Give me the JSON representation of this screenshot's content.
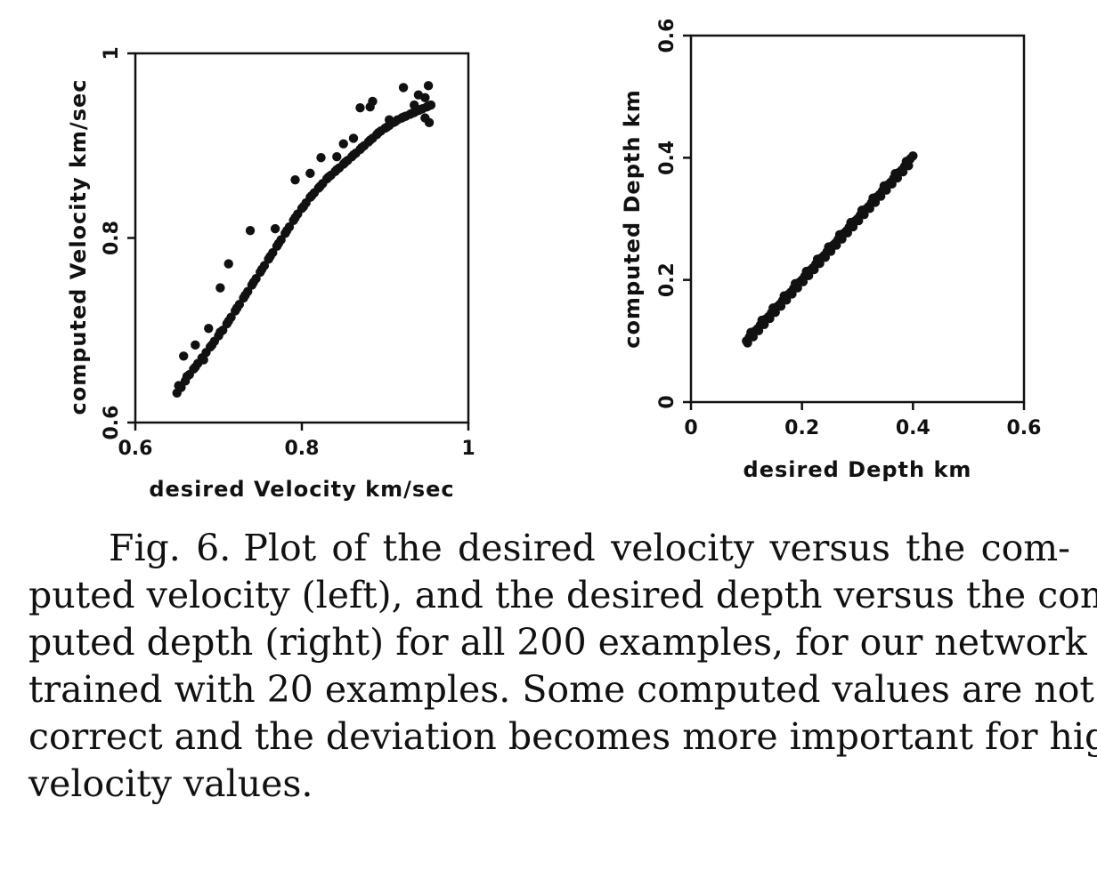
{
  "chart_data": [
    {
      "type": "scatter",
      "panel": "left",
      "xlabel": "desired Velocity km/sec",
      "ylabel": "computed Velocity km/sec",
      "xlim": [
        0.6,
        1.0
      ],
      "ylim": [
        0.6,
        1.0
      ],
      "xticks": [
        "0.6",
        "0.8",
        "1"
      ],
      "yticks": [
        "0.6",
        "0.8",
        "1"
      ],
      "grid": false,
      "series": [
        {
          "marker_color": "#111111",
          "points": [
            [
              0.65,
              0.632
            ],
            [
              0.655,
              0.638
            ],
            [
              0.66,
              0.645
            ],
            [
              0.665,
              0.652
            ],
            [
              0.67,
              0.658
            ],
            [
              0.675,
              0.664
            ],
            [
              0.68,
              0.67
            ],
            [
              0.685,
              0.676
            ],
            [
              0.69,
              0.682
            ],
            [
              0.695,
              0.688
            ],
            [
              0.7,
              0.694
            ],
            [
              0.705,
              0.7
            ],
            [
              0.71,
              0.707
            ],
            [
              0.715,
              0.714
            ],
            [
              0.72,
              0.721
            ],
            [
              0.725,
              0.728
            ],
            [
              0.73,
              0.735
            ],
            [
              0.735,
              0.742
            ],
            [
              0.74,
              0.749
            ],
            [
              0.745,
              0.756
            ],
            [
              0.75,
              0.763
            ],
            [
              0.755,
              0.77
            ],
            [
              0.76,
              0.777
            ],
            [
              0.765,
              0.784
            ],
            [
              0.77,
              0.791
            ],
            [
              0.775,
              0.798
            ],
            [
              0.78,
              0.805
            ],
            [
              0.785,
              0.812
            ],
            [
              0.79,
              0.819
            ],
            [
              0.795,
              0.826
            ],
            [
              0.8,
              0.832
            ],
            [
              0.805,
              0.838
            ],
            [
              0.81,
              0.844
            ],
            [
              0.815,
              0.849
            ],
            [
              0.82,
              0.854
            ],
            [
              0.825,
              0.859
            ],
            [
              0.83,
              0.864
            ],
            [
              0.835,
              0.868
            ],
            [
              0.84,
              0.872
            ],
            [
              0.845,
              0.876
            ],
            [
              0.85,
              0.88
            ],
            [
              0.855,
              0.884
            ],
            [
              0.86,
              0.888
            ],
            [
              0.865,
              0.892
            ],
            [
              0.87,
              0.896
            ],
            [
              0.875,
              0.9
            ],
            [
              0.88,
              0.904
            ],
            [
              0.885,
              0.908
            ],
            [
              0.89,
              0.912
            ],
            [
              0.895,
              0.916
            ],
            [
              0.9,
              0.919
            ],
            [
              0.905,
              0.922
            ],
            [
              0.91,
              0.925
            ],
            [
              0.915,
              0.928
            ],
            [
              0.92,
              0.93
            ],
            [
              0.925,
              0.932
            ],
            [
              0.93,
              0.934
            ],
            [
              0.935,
              0.936
            ],
            [
              0.94,
              0.938
            ],
            [
              0.945,
              0.94
            ],
            [
              0.95,
              0.942
            ],
            [
              0.955,
              0.944
            ],
            [
              0.652,
              0.64
            ],
            [
              0.662,
              0.65
            ],
            [
              0.672,
              0.66
            ],
            [
              0.682,
              0.668
            ],
            [
              0.692,
              0.684
            ],
            [
              0.702,
              0.698
            ],
            [
              0.712,
              0.71
            ],
            [
              0.722,
              0.724
            ],
            [
              0.732,
              0.738
            ],
            [
              0.742,
              0.752
            ],
            [
              0.752,
              0.766
            ],
            [
              0.762,
              0.78
            ],
            [
              0.772,
              0.794
            ],
            [
              0.782,
              0.808
            ],
            [
              0.792,
              0.822
            ],
            [
              0.802,
              0.834
            ],
            [
              0.812,
              0.846
            ],
            [
              0.822,
              0.856
            ],
            [
              0.832,
              0.866
            ],
            [
              0.842,
              0.874
            ],
            [
              0.852,
              0.882
            ],
            [
              0.862,
              0.89
            ],
            [
              0.872,
              0.898
            ],
            [
              0.882,
              0.906
            ],
            [
              0.892,
              0.914
            ],
            [
              0.902,
              0.92
            ],
            [
              0.912,
              0.926
            ],
            [
              0.922,
              0.931
            ],
            [
              0.932,
              0.935
            ],
            [
              0.942,
              0.939
            ],
            [
              0.952,
              0.943
            ],
            [
              0.948,
              0.93
            ],
            [
              0.953,
              0.925
            ],
            [
              0.658,
              0.672
            ],
            [
              0.672,
              0.684
            ],
            [
              0.688,
              0.702
            ],
            [
              0.702,
              0.746
            ],
            [
              0.712,
              0.772
            ],
            [
              0.738,
              0.808
            ],
            [
              0.768,
              0.81
            ],
            [
              0.792,
              0.863
            ],
            [
              0.81,
              0.87
            ],
            [
              0.823,
              0.887
            ],
            [
              0.842,
              0.888
            ],
            [
              0.85,
              0.902
            ],
            [
              0.862,
              0.908
            ],
            [
              0.87,
              0.941
            ],
            [
              0.885,
              0.948
            ],
            [
              0.882,
              0.942
            ],
            [
              0.905,
              0.928
            ],
            [
              0.922,
              0.963
            ],
            [
              0.94,
              0.955
            ],
            [
              0.952,
              0.965
            ],
            [
              0.935,
              0.944
            ],
            [
              0.948,
              0.952
            ]
          ]
        }
      ]
    },
    {
      "type": "scatter",
      "panel": "right",
      "xlabel": "desired Depth km",
      "ylabel": "computed Depth km",
      "xlim": [
        0,
        0.6
      ],
      "ylim": [
        0,
        0.6
      ],
      "xticks": [
        "0",
        "0.2",
        "0.4",
        "0.6"
      ],
      "yticks": [
        "0",
        "0.2",
        "0.4",
        "0.6"
      ],
      "grid": false,
      "series": [
        {
          "marker_color": "#111111",
          "points": [
            [
              0.1,
              0.1
            ],
            [
              0.105,
              0.106
            ],
            [
              0.11,
              0.11
            ],
            [
              0.115,
              0.116
            ],
            [
              0.12,
              0.12
            ],
            [
              0.125,
              0.126
            ],
            [
              0.13,
              0.13
            ],
            [
              0.135,
              0.136
            ],
            [
              0.14,
              0.14
            ],
            [
              0.145,
              0.146
            ],
            [
              0.15,
              0.15
            ],
            [
              0.155,
              0.156
            ],
            [
              0.16,
              0.16
            ],
            [
              0.165,
              0.166
            ],
            [
              0.17,
              0.17
            ],
            [
              0.175,
              0.176
            ],
            [
              0.18,
              0.18
            ],
            [
              0.185,
              0.186
            ],
            [
              0.19,
              0.19
            ],
            [
              0.195,
              0.196
            ],
            [
              0.2,
              0.2
            ],
            [
              0.205,
              0.206
            ],
            [
              0.21,
              0.21
            ],
            [
              0.215,
              0.216
            ],
            [
              0.22,
              0.22
            ],
            [
              0.225,
              0.226
            ],
            [
              0.23,
              0.23
            ],
            [
              0.235,
              0.236
            ],
            [
              0.24,
              0.24
            ],
            [
              0.245,
              0.246
            ],
            [
              0.25,
              0.25
            ],
            [
              0.255,
              0.256
            ],
            [
              0.26,
              0.26
            ],
            [
              0.265,
              0.266
            ],
            [
              0.27,
              0.27
            ],
            [
              0.275,
              0.276
            ],
            [
              0.28,
              0.28
            ],
            [
              0.285,
              0.286
            ],
            [
              0.29,
              0.29
            ],
            [
              0.295,
              0.296
            ],
            [
              0.3,
              0.3
            ],
            [
              0.305,
              0.306
            ],
            [
              0.31,
              0.31
            ],
            [
              0.315,
              0.316
            ],
            [
              0.32,
              0.32
            ],
            [
              0.325,
              0.326
            ],
            [
              0.33,
              0.33
            ],
            [
              0.335,
              0.336
            ],
            [
              0.34,
              0.34
            ],
            [
              0.345,
              0.346
            ],
            [
              0.35,
              0.35
            ],
            [
              0.355,
              0.356
            ],
            [
              0.36,
              0.36
            ],
            [
              0.365,
              0.366
            ],
            [
              0.37,
              0.37
            ],
            [
              0.375,
              0.376
            ],
            [
              0.38,
              0.38
            ],
            [
              0.385,
              0.386
            ],
            [
              0.39,
              0.39
            ],
            [
              0.395,
              0.398
            ],
            [
              0.102,
              0.097
            ],
            [
              0.112,
              0.107
            ],
            [
              0.122,
              0.117
            ],
            [
              0.132,
              0.127
            ],
            [
              0.142,
              0.137
            ],
            [
              0.152,
              0.147
            ],
            [
              0.162,
              0.157
            ],
            [
              0.172,
              0.167
            ],
            [
              0.182,
              0.177
            ],
            [
              0.192,
              0.187
            ],
            [
              0.202,
              0.197
            ],
            [
              0.212,
              0.207
            ],
            [
              0.222,
              0.217
            ],
            [
              0.232,
              0.227
            ],
            [
              0.242,
              0.237
            ],
            [
              0.252,
              0.247
            ],
            [
              0.262,
              0.257
            ],
            [
              0.272,
              0.267
            ],
            [
              0.282,
              0.277
            ],
            [
              0.292,
              0.287
            ],
            [
              0.302,
              0.297
            ],
            [
              0.312,
              0.307
            ],
            [
              0.322,
              0.317
            ],
            [
              0.332,
              0.327
            ],
            [
              0.342,
              0.337
            ],
            [
              0.352,
              0.347
            ],
            [
              0.362,
              0.357
            ],
            [
              0.372,
              0.367
            ],
            [
              0.382,
              0.377
            ],
            [
              0.392,
              0.387
            ],
            [
              0.108,
              0.114
            ],
            [
              0.128,
              0.134
            ],
            [
              0.148,
              0.154
            ],
            [
              0.168,
              0.174
            ],
            [
              0.188,
              0.194
            ],
            [
              0.208,
              0.214
            ],
            [
              0.228,
              0.234
            ],
            [
              0.248,
              0.254
            ],
            [
              0.268,
              0.274
            ],
            [
              0.288,
              0.294
            ],
            [
              0.308,
              0.314
            ],
            [
              0.328,
              0.334
            ],
            [
              0.348,
              0.354
            ],
            [
              0.368,
              0.374
            ],
            [
              0.388,
              0.394
            ],
            [
              0.4,
              0.403
            ]
          ]
        }
      ]
    }
  ],
  "caption": {
    "figure_label": "Fig. 6.",
    "lines": [
      "Plot of the desired velocity versus the com-",
      "puted velocity (left), and the desired depth versus the com-",
      "puted depth (right) for all 200 examples, for our network",
      "trained with 20 examples. Some computed values are not",
      "correct and the deviation becomes more important for high",
      "velocity values."
    ]
  }
}
